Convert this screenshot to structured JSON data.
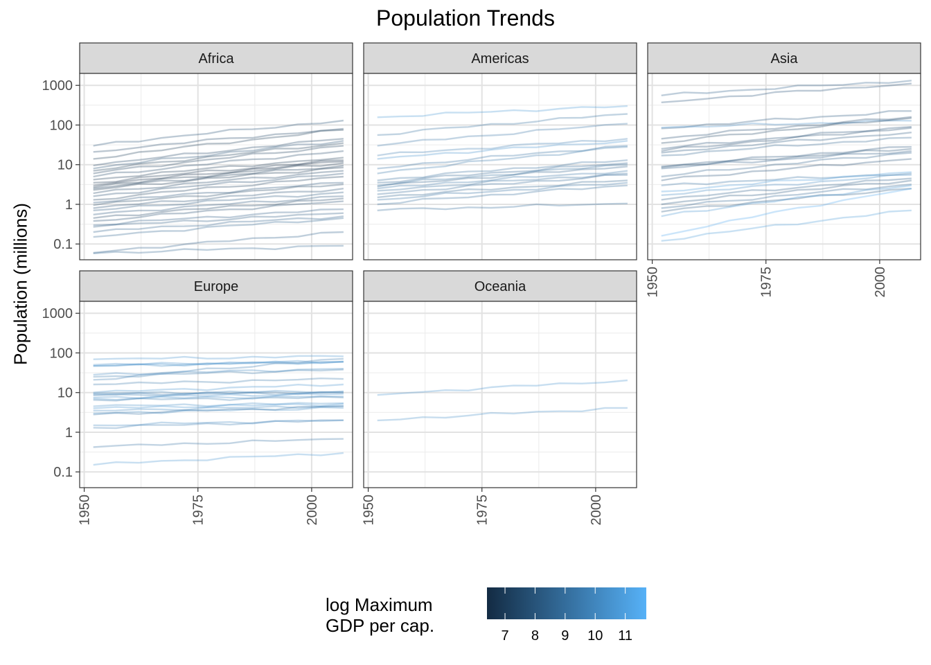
{
  "title": "Population Trends",
  "ylabel": "Population (millions)",
  "legend": {
    "title_line1": "log Maximum",
    "title_line2": "GDP per cap.",
    "ticks": [
      "7",
      "8",
      "9",
      "10",
      "11"
    ],
    "range": [
      6.4,
      11.7
    ],
    "color_low": "#132B43",
    "color_high": "#56B1F7"
  },
  "chart_data": {
    "type": "line",
    "facets": [
      "Africa",
      "Americas",
      "Asia",
      "Europe",
      "Oceania"
    ],
    "x_ticks": [
      "1950",
      "1975",
      "2000"
    ],
    "y_ticks": [
      "0.1",
      "1",
      "10",
      "100",
      "1000"
    ],
    "y_scale": "log10",
    "xlim": [
      1949,
      2009
    ],
    "ylim": [
      0.04,
      2000
    ],
    "years": [
      1952,
      1957,
      1962,
      1967,
      1972,
      1977,
      1982,
      1987,
      1992,
      1997,
      2002,
      2007
    ],
    "series": [
      {
        "facet": "Africa",
        "start": 30,
        "end": 130,
        "gdp": 7.8
      },
      {
        "facet": "Africa",
        "start": 21,
        "end": 80,
        "gdp": 7.5
      },
      {
        "facet": "Africa",
        "start": 14,
        "end": 75,
        "gdp": 7.0
      },
      {
        "facet": "Africa",
        "start": 9.5,
        "end": 45,
        "gdp": 7.3
      },
      {
        "facet": "Africa",
        "start": 8,
        "end": 40,
        "gdp": 7.8
      },
      {
        "facet": "Africa",
        "start": 7,
        "end": 35,
        "gdp": 7.0
      },
      {
        "facet": "Africa",
        "start": 6,
        "end": 30,
        "gdp": 7.2
      },
      {
        "facet": "Africa",
        "start": 5,
        "end": 22,
        "gdp": 7.5
      },
      {
        "facet": "Africa",
        "start": 4.2,
        "end": 15,
        "gdp": 6.9
      },
      {
        "facet": "Africa",
        "start": 3.5,
        "end": 13,
        "gdp": 6.7
      },
      {
        "facet": "Africa",
        "start": 3,
        "end": 12,
        "gdp": 6.6
      },
      {
        "facet": "Africa",
        "start": 2.7,
        "end": 11,
        "gdp": 6.8
      },
      {
        "facet": "Africa",
        "start": 2.5,
        "end": 9.5,
        "gdp": 7.1
      },
      {
        "facet": "Africa",
        "start": 2.3,
        "end": 8.5,
        "gdp": 6.9
      },
      {
        "facet": "Africa",
        "start": 1.9,
        "end": 7,
        "gdp": 7.3
      },
      {
        "facet": "Africa",
        "start": 1.6,
        "end": 6,
        "gdp": 7.6
      },
      {
        "facet": "Africa",
        "start": 1.3,
        "end": 5,
        "gdp": 7.2
      },
      {
        "facet": "Africa",
        "start": 1.1,
        "end": 3.5,
        "gdp": 7.9
      },
      {
        "facet": "Africa",
        "start": 0.95,
        "end": 3.2,
        "gdp": 7.4
      },
      {
        "facet": "Africa",
        "start": 0.8,
        "end": 2.5,
        "gdp": 7.7
      },
      {
        "facet": "Africa",
        "start": 0.7,
        "end": 2,
        "gdp": 8.1
      },
      {
        "facet": "Africa",
        "start": 0.55,
        "end": 1.6,
        "gdp": 8.0
      },
      {
        "facet": "Africa",
        "start": 0.45,
        "end": 1.4,
        "gdp": 7.3
      },
      {
        "facet": "Africa",
        "start": 0.38,
        "end": 1.2,
        "gdp": 7.6
      },
      {
        "facet": "Africa",
        "start": 0.3,
        "end": 0.75,
        "gdp": 8.3
      },
      {
        "facet": "Africa",
        "start": 0.27,
        "end": 0.6,
        "gdp": 8.2
      },
      {
        "facet": "Africa",
        "start": 0.2,
        "end": 0.5,
        "gdp": 8.5
      },
      {
        "facet": "Africa",
        "start": 0.15,
        "end": 0.45,
        "gdp": 8.6
      },
      {
        "facet": "Africa",
        "start": 0.06,
        "end": 0.2,
        "gdp": 8.4
      },
      {
        "facet": "Africa",
        "start": 0.058,
        "end": 0.09,
        "gdp": 8.6
      },
      {
        "facet": "Americas",
        "start": 157,
        "end": 301,
        "gdp": 10.7
      },
      {
        "facet": "Americas",
        "start": 56,
        "end": 190,
        "gdp": 9.1
      },
      {
        "facet": "Americas",
        "start": 30,
        "end": 108,
        "gdp": 9.3
      },
      {
        "facet": "Americas",
        "start": 17,
        "end": 45,
        "gdp": 9.6
      },
      {
        "facet": "Americas",
        "start": 14,
        "end": 40,
        "gdp": 10.5
      },
      {
        "facet": "Americas",
        "start": 8,
        "end": 30,
        "gdp": 9.2
      },
      {
        "facet": "Americas",
        "start": 6,
        "end": 28,
        "gdp": 9.4
      },
      {
        "facet": "Americas",
        "start": 4,
        "end": 13,
        "gdp": 9.0
      },
      {
        "facet": "Americas",
        "start": 3.5,
        "end": 11,
        "gdp": 8.7
      },
      {
        "facet": "Americas",
        "start": 3,
        "end": 10,
        "gdp": 9.1
      },
      {
        "facet": "Americas",
        "start": 2.8,
        "end": 9,
        "gdp": 8.5
      },
      {
        "facet": "Americas",
        "start": 2.5,
        "end": 7,
        "gdp": 9.3
      },
      {
        "facet": "Americas",
        "start": 2.2,
        "end": 6,
        "gdp": 9.0
      },
      {
        "facet": "Americas",
        "start": 1.8,
        "end": 5.5,
        "gdp": 8.8
      },
      {
        "facet": "Americas",
        "start": 1.5,
        "end": 4,
        "gdp": 8.6
      },
      {
        "facet": "Americas",
        "start": 1.3,
        "end": 3.5,
        "gdp": 9.2
      },
      {
        "facet": "Americas",
        "start": 1,
        "end": 3,
        "gdp": 8.9
      },
      {
        "facet": "Americas",
        "start": 0.7,
        "end": 1.05,
        "gdp": 8.9
      },
      {
        "facet": "Asia",
        "start": 556,
        "end": 1320,
        "gdp": 8.4
      },
      {
        "facet": "Asia",
        "start": 372,
        "end": 1110,
        "gdp": 7.9
      },
      {
        "facet": "Asia",
        "start": 82,
        "end": 225,
        "gdp": 8.1
      },
      {
        "facet": "Asia",
        "start": 86,
        "end": 128,
        "gdp": 10.4
      },
      {
        "facet": "Asia",
        "start": 45,
        "end": 160,
        "gdp": 7.6
      },
      {
        "facet": "Asia",
        "start": 35,
        "end": 150,
        "gdp": 7.4
      },
      {
        "facet": "Asia",
        "start": 25,
        "end": 90,
        "gdp": 7.9
      },
      {
        "facet": "Asia",
        "start": 22,
        "end": 85,
        "gdp": 7.7
      },
      {
        "facet": "Asia",
        "start": 20,
        "end": 65,
        "gdp": 8.1
      },
      {
        "facet": "Asia",
        "start": 17,
        "end": 48,
        "gdp": 8.6
      },
      {
        "facet": "Asia",
        "start": 9,
        "end": 28,
        "gdp": 8.0
      },
      {
        "facet": "Asia",
        "start": 8.5,
        "end": 25,
        "gdp": 7.8
      },
      {
        "facet": "Asia",
        "start": 8,
        "end": 22,
        "gdp": 8.3
      },
      {
        "facet": "Asia",
        "start": 5,
        "end": 20,
        "gdp": 8.5
      },
      {
        "facet": "Asia",
        "start": 4,
        "end": 14,
        "gdp": 7.9
      },
      {
        "facet": "Asia",
        "start": 3,
        "end": 6,
        "gdp": 9.2
      },
      {
        "facet": "Asia",
        "start": 2.1,
        "end": 6.5,
        "gdp": 10.9
      },
      {
        "facet": "Asia",
        "start": 1.7,
        "end": 5.5,
        "gdp": 10.1
      },
      {
        "facet": "Asia",
        "start": 1.3,
        "end": 4.5,
        "gdp": 8.4
      },
      {
        "facet": "Asia",
        "start": 1,
        "end": 4,
        "gdp": 8.1
      },
      {
        "facet": "Asia",
        "start": 0.8,
        "end": 3.2,
        "gdp": 8.7
      },
      {
        "facet": "Asia",
        "start": 0.65,
        "end": 2.5,
        "gdp": 8.2
      },
      {
        "facet": "Asia",
        "start": 0.5,
        "end": 3,
        "gdp": 10.6
      },
      {
        "facet": "Asia",
        "start": 0.16,
        "end": 2.5,
        "gdp": 11.4
      },
      {
        "facet": "Asia",
        "start": 0.12,
        "end": 0.7,
        "gdp": 10.8
      },
      {
        "facet": "Europe",
        "start": 69,
        "end": 82,
        "gdp": 10.5
      },
      {
        "facet": "Europe",
        "start": 50,
        "end": 61,
        "gdp": 10.4
      },
      {
        "facet": "Europe",
        "start": 47,
        "end": 60,
        "gdp": 10.5
      },
      {
        "facet": "Europe",
        "start": 47,
        "end": 59,
        "gdp": 10.2
      },
      {
        "facet": "Europe",
        "start": 28,
        "end": 40,
        "gdp": 10.1
      },
      {
        "facet": "Europe",
        "start": 25,
        "end": 38,
        "gdp": 9.5
      },
      {
        "facet": "Europe",
        "start": 21,
        "end": 71,
        "gdp": 9.6
      },
      {
        "facet": "Europe",
        "start": 16,
        "end": 22,
        "gdp": 9.4
      },
      {
        "facet": "Europe",
        "start": 10,
        "end": 16,
        "gdp": 10.5
      },
      {
        "facet": "Europe",
        "start": 9.5,
        "end": 10.8,
        "gdp": 10.1
      },
      {
        "facet": "Europe",
        "start": 9,
        "end": 10.2,
        "gdp": 9.6
      },
      {
        "facet": "Europe",
        "start": 8.5,
        "end": 10,
        "gdp": 9.7
      },
      {
        "facet": "Europe",
        "start": 7.5,
        "end": 9.3,
        "gdp": 10.4
      },
      {
        "facet": "Europe",
        "start": 7,
        "end": 8,
        "gdp": 10.3
      },
      {
        "facet": "Europe",
        "start": 6.5,
        "end": 7.5,
        "gdp": 9.5
      },
      {
        "facet": "Europe",
        "start": 4.5,
        "end": 5.4,
        "gdp": 10.3
      },
      {
        "facet": "Europe",
        "start": 4,
        "end": 5.2,
        "gdp": 10.6
      },
      {
        "facet": "Europe",
        "start": 3.5,
        "end": 4.6,
        "gdp": 10.1
      },
      {
        "facet": "Europe",
        "start": 3,
        "end": 4.1,
        "gdp": 10.3
      },
      {
        "facet": "Europe",
        "start": 2.8,
        "end": 4.5,
        "gdp": 9.2
      },
      {
        "facet": "Europe",
        "start": 1.5,
        "end": 2,
        "gdp": 10.1
      },
      {
        "facet": "Europe",
        "start": 1.3,
        "end": 2,
        "gdp": 9.6
      },
      {
        "facet": "Europe",
        "start": 0.42,
        "end": 0.68,
        "gdp": 9.2
      },
      {
        "facet": "Europe",
        "start": 0.15,
        "end": 0.3,
        "gdp": 10.6
      },
      {
        "facet": "Oceania",
        "start": 8.7,
        "end": 20.4,
        "gdp": 10.5
      },
      {
        "facet": "Oceania",
        "start": 1.99,
        "end": 4.1,
        "gdp": 10.3
      }
    ]
  }
}
